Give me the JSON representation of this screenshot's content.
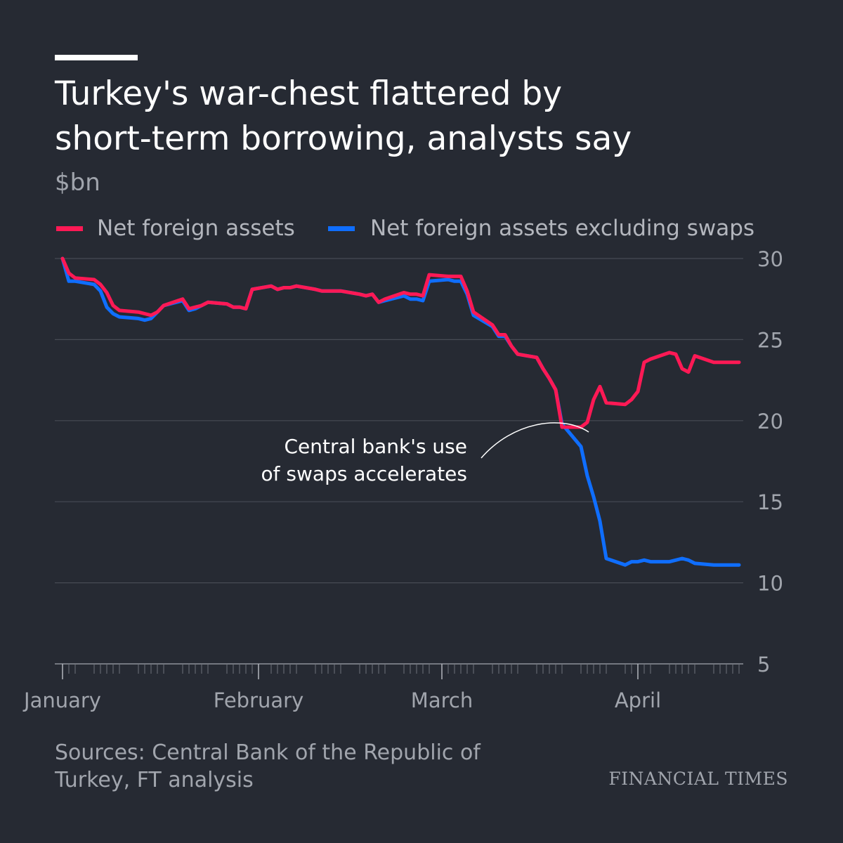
{
  "title_lines": [
    "Turkey's war-chest flattered by",
    "short-term borrowing, analysts say"
  ],
  "subtitle": "$bn",
  "legend": [
    {
      "label": "Net foreign assets",
      "color": "#ff1955"
    },
    {
      "label": "Net foreign assets excluding swaps",
      "color": "#0f6eff"
    }
  ],
  "annotation": [
    "Central bank's use",
    "of swaps accelerates"
  ],
  "source_lines": [
    "Sources: Central Bank of the Republic of",
    "Turkey, FT analysis"
  ],
  "brand": "FINANCIAL TIMES",
  "colors": {
    "background": "#262a33",
    "grid": "#474b54",
    "axis_text": "#a1a5ad",
    "red": "#ff1955",
    "blue": "#0f6eff"
  },
  "chart_data": {
    "type": "line",
    "ylabel": "$bn",
    "ylim": [
      5,
      30
    ],
    "yticks": [
      30,
      25,
      20,
      15,
      10,
      5
    ],
    "xlim": [
      "2020-01-01",
      "2020-04-17"
    ],
    "xticks": [
      {
        "label": "January",
        "date": "2020-01-01"
      },
      {
        "label": "February",
        "date": "2020-02-01"
      },
      {
        "label": "March",
        "date": "2020-03-01"
      },
      {
        "label": "April",
        "date": "2020-04-01"
      }
    ],
    "grid": true,
    "legend_position": "top",
    "x": [
      "2020-01-01",
      "2020-01-02",
      "2020-01-03",
      "2020-01-06",
      "2020-01-07",
      "2020-01-08",
      "2020-01-09",
      "2020-01-10",
      "2020-01-13",
      "2020-01-14",
      "2020-01-15",
      "2020-01-16",
      "2020-01-17",
      "2020-01-20",
      "2020-01-21",
      "2020-01-22",
      "2020-01-23",
      "2020-01-24",
      "2020-01-27",
      "2020-01-28",
      "2020-01-29",
      "2020-01-30",
      "2020-01-31",
      "2020-02-03",
      "2020-02-04",
      "2020-02-05",
      "2020-02-06",
      "2020-02-07",
      "2020-02-10",
      "2020-02-11",
      "2020-02-12",
      "2020-02-13",
      "2020-02-14",
      "2020-02-17",
      "2020-02-18",
      "2020-02-19",
      "2020-02-20",
      "2020-02-21",
      "2020-02-24",
      "2020-02-25",
      "2020-02-26",
      "2020-02-27",
      "2020-02-28",
      "2020-03-02",
      "2020-03-03",
      "2020-03-04",
      "2020-03-05",
      "2020-03-06",
      "2020-03-09",
      "2020-03-10",
      "2020-03-11",
      "2020-03-12",
      "2020-03-13",
      "2020-03-16",
      "2020-03-17",
      "2020-03-18",
      "2020-03-19",
      "2020-03-20",
      "2020-03-23",
      "2020-03-24",
      "2020-03-25",
      "2020-03-26",
      "2020-03-27",
      "2020-03-30",
      "2020-03-31",
      "2020-04-01",
      "2020-04-02",
      "2020-04-03",
      "2020-04-06",
      "2020-04-07",
      "2020-04-08",
      "2020-04-09",
      "2020-04-10",
      "2020-04-13",
      "2020-04-14",
      "2020-04-15",
      "2020-04-16",
      "2020-04-17"
    ],
    "series": [
      {
        "name": "Net foreign assets",
        "color": "#ff1955",
        "values": [
          30.0,
          29.1,
          28.8,
          28.7,
          28.4,
          27.9,
          27.1,
          26.8,
          26.7,
          26.6,
          26.5,
          26.7,
          27.1,
          27.5,
          26.9,
          27.0,
          27.1,
          27.3,
          27.2,
          27.0,
          27.0,
          26.9,
          28.1,
          28.3,
          28.1,
          28.2,
          28.2,
          28.3,
          28.1,
          28.0,
          28.0,
          28.0,
          28.0,
          27.8,
          27.7,
          27.8,
          27.3,
          27.5,
          27.9,
          27.8,
          27.8,
          27.7,
          29.0,
          28.9,
          28.9,
          28.9,
          28.0,
          26.7,
          25.9,
          25.3,
          25.3,
          24.6,
          24.1,
          23.9,
          23.2,
          22.6,
          21.9,
          19.6,
          19.6,
          19.9,
          21.3,
          22.1,
          21.1,
          21.0,
          21.3,
          21.8,
          23.6,
          23.8,
          24.2,
          24.1,
          23.2,
          23.0,
          24.0,
          23.6,
          23.6,
          23.6,
          23.6,
          23.6
        ]
      },
      {
        "name": "Net foreign assets excluding swaps",
        "color": "#0f6eff",
        "values": [
          30.0,
          28.6,
          28.6,
          28.4,
          28.0,
          27.0,
          26.6,
          26.4,
          26.3,
          26.2,
          26.3,
          26.7,
          27.1,
          27.4,
          26.8,
          26.9,
          27.1,
          27.3,
          27.2,
          27.0,
          27.0,
          26.9,
          28.1,
          28.3,
          28.1,
          28.2,
          28.2,
          28.3,
          28.1,
          28.0,
          28.0,
          28.0,
          28.0,
          27.8,
          27.7,
          27.8,
          27.3,
          27.4,
          27.7,
          27.5,
          27.5,
          27.4,
          28.6,
          28.7,
          28.6,
          28.6,
          27.8,
          26.5,
          25.8,
          25.2,
          25.2,
          24.6,
          24.1,
          23.9,
          23.2,
          22.6,
          21.9,
          19.8,
          18.4,
          16.6,
          15.3,
          13.8,
          11.5,
          11.1,
          11.3,
          11.3,
          11.4,
          11.3,
          11.3,
          11.4,
          11.5,
          11.4,
          11.2,
          11.1,
          11.1,
          11.1,
          11.1,
          11.1
        ]
      }
    ]
  }
}
